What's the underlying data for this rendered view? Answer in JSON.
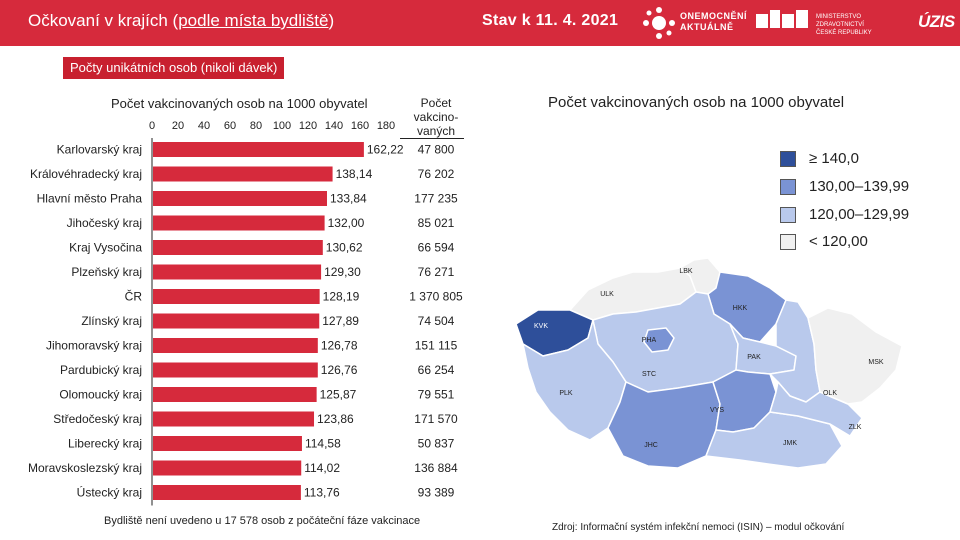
{
  "header": {
    "title_pre": "Očkovaní v krajích (",
    "title_underlined": "podle místa bydliště",
    "title_post": ")",
    "date": "Stav k 11. 4. 2021",
    "logo_onemoc_line1": "ONEMOCNĚNÍ",
    "logo_onemoc_line2": "AKTUÁLNĚ",
    "logo_mzcr_line1": "MINISTERSTVO ZDRAVOTNICTVÍ",
    "logo_mzcr_line2": "ČESKÉ REPUBLIKY",
    "logo_uzis": "ÚZIS",
    "brand_color": "#d62a3c"
  },
  "subtitle": "Počty unikátních osob (nikoli dávek)",
  "bar_title": "Počet vakcinovaných osob na 1000 obyvatel",
  "count_header": "Počet vakcino-vaných",
  "map_title": "Počet vakcinovaných osob na 1000 obyvatel",
  "chart_data": {
    "type": "bar",
    "orientation": "horizontal",
    "title": "Počet vakcinovaných osob na 1000 obyvatel",
    "xlim": [
      0,
      180
    ],
    "xticks": [
      "0",
      "20",
      "40",
      "60",
      "80",
      "100",
      "120",
      "140",
      "160",
      "180"
    ],
    "bar_color": "#d62a3c",
    "categories": [
      "Karlovarský kraj",
      "Královéhradecký kraj",
      "Hlavní město Praha",
      "Jihočeský kraj",
      "Kraj Vysočina",
      "Plzeňský kraj",
      "ČR",
      "Zlínský kraj",
      "Jihomoravský kraj",
      "Pardubický kraj",
      "Olomoucký kraj",
      "Středočeský kraj",
      "Liberecký kraj",
      "Moravskoslezský kraj",
      "Ústecký kraj"
    ],
    "values": [
      162.22,
      138.14,
      133.84,
      132.0,
      130.62,
      129.3,
      128.19,
      127.89,
      126.78,
      126.76,
      125.87,
      123.86,
      114.58,
      114.02,
      113.76
    ],
    "value_labels": [
      "162,22",
      "138,14",
      "133,84",
      "132,00",
      "130,62",
      "129,30",
      "128,19",
      "127,89",
      "126,78",
      "126,76",
      "125,87",
      "123,86",
      "114,58",
      "114,02",
      "113,76"
    ],
    "vaccinated_counts": [
      "47 800",
      "76 202",
      "177 235",
      "85 021",
      "66 594",
      "76 271",
      "1 370 805",
      "74 504",
      "151 115",
      "66 254",
      "79 551",
      "171 570",
      "50 837",
      "136 884",
      "93 389"
    ]
  },
  "map": {
    "regions": [
      {
        "code": "KVK",
        "value": 162.22,
        "color": "#2e4f9a"
      },
      {
        "code": "ULK",
        "value": 113.76,
        "color": "#f0f0f0"
      },
      {
        "code": "LBK",
        "value": 114.58,
        "color": "#f0f0f0"
      },
      {
        "code": "HKK",
        "value": 138.14,
        "color": "#7a93d4"
      },
      {
        "code": "PHA",
        "value": 133.84,
        "color": "#7a93d4"
      },
      {
        "code": "STC",
        "value": 123.86,
        "color": "#b9c9ec"
      },
      {
        "code": "PAK",
        "value": 126.76,
        "color": "#b9c9ec"
      },
      {
        "code": "PLK",
        "value": 129.3,
        "color": "#b9c9ec"
      },
      {
        "code": "VYS",
        "value": 130.62,
        "color": "#7a93d4"
      },
      {
        "code": "JHC",
        "value": 132.0,
        "color": "#7a93d4"
      },
      {
        "code": "JMK",
        "value": 126.78,
        "color": "#b9c9ec"
      },
      {
        "code": "OLK",
        "value": 125.87,
        "color": "#b9c9ec"
      },
      {
        "code": "ZLK",
        "value": 127.89,
        "color": "#b9c9ec"
      },
      {
        "code": "MSK",
        "value": 114.02,
        "color": "#f0f0f0"
      }
    ]
  },
  "legend": [
    {
      "label": "≥ 140,0",
      "color": "#2e4f9a"
    },
    {
      "label": "130,00–139,99",
      "color": "#7a93d4"
    },
    {
      "label": "120,00–129,99",
      "color": "#b9c9ec"
    },
    {
      "label": "< 120,00",
      "color": "#f0f0f0"
    }
  ],
  "footnote_left": "Bydliště není uvedeno u 17 578 osob z počáteční fáze vakcinace",
  "footnote_right": "Zdroj: Informační systém infekční nemoci (ISIN) – modul očkování"
}
